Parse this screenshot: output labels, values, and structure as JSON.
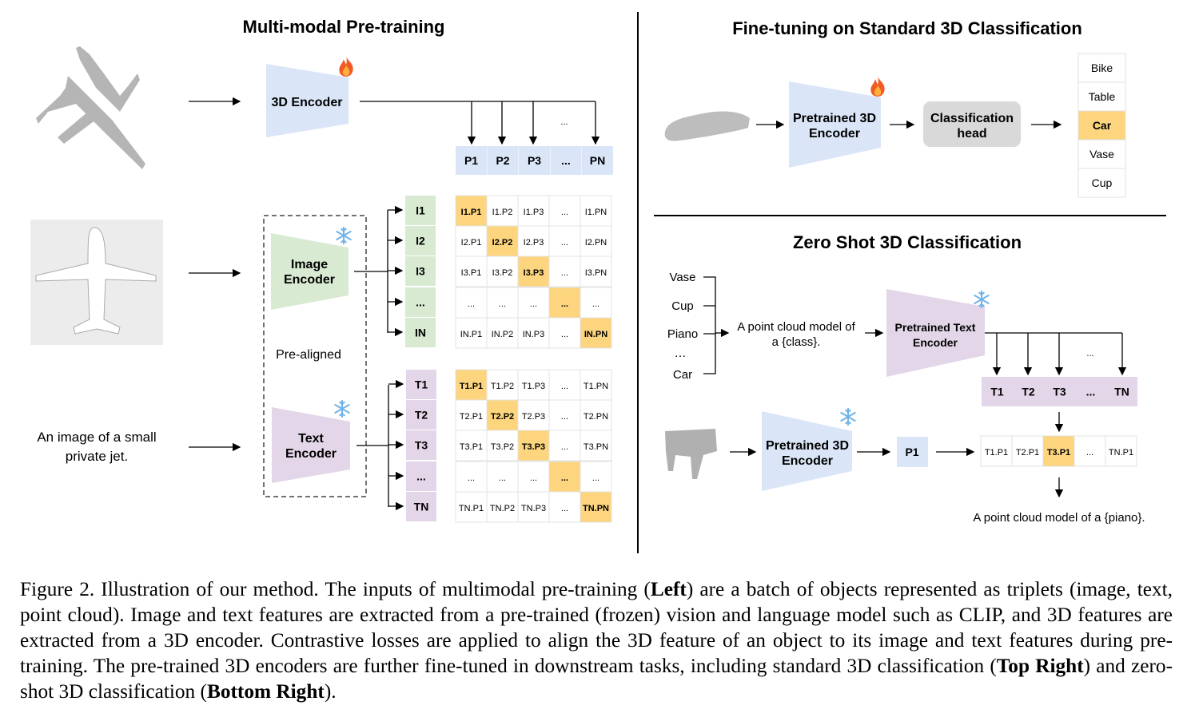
{
  "left": {
    "title": "Multi-modal Pre-training",
    "encoder_3d": "3D Encoder",
    "image_encoder": [
      "Image",
      "Encoder"
    ],
    "text_encoder": [
      "Text",
      "Encoder"
    ],
    "pre_aligned": "Pre-aligned",
    "text_input": [
      "An image of a small",
      "private jet."
    ],
    "ellipsis": "...",
    "p_features": [
      "P1",
      "P2",
      "P3",
      "...",
      "PN"
    ],
    "i_features": [
      "I1",
      "I2",
      "I3",
      "...",
      "IN"
    ],
    "t_features": [
      "T1",
      "T2",
      "T3",
      "...",
      "TN"
    ],
    "image_matrix": [
      [
        "I1.P1",
        "I1.P2",
        "I1.P3",
        "...",
        "I1.PN"
      ],
      [
        "I2.P1",
        "I2.P2",
        "I2.P3",
        "...",
        "I2.PN"
      ],
      [
        "I3.P1",
        "I3.P2",
        "I3.P3",
        "...",
        "I3.PN"
      ],
      [
        "...",
        "...",
        "...",
        "...",
        "..."
      ],
      [
        "IN.P1",
        "IN.P2",
        "IN.P3",
        "...",
        "IN.PN"
      ]
    ],
    "text_matrix": [
      [
        "T1.P1",
        "T1.P2",
        "T1.P3",
        "...",
        "T1.PN"
      ],
      [
        "T2.P1",
        "T2.P2",
        "T2.P3",
        "...",
        "T2.PN"
      ],
      [
        "T3.P1",
        "T3.P2",
        "T3.P3",
        "...",
        "T3.PN"
      ],
      [
        "...",
        "...",
        "...",
        "...",
        "..."
      ],
      [
        "TN.P1",
        "TN.P2",
        "TN.P3",
        "...",
        "TN.PN"
      ]
    ]
  },
  "top_right": {
    "title": "Fine-tuning on Standard 3D Classification",
    "encoder": [
      "Pretrained 3D",
      "Encoder"
    ],
    "head": [
      "Classification",
      "head"
    ],
    "classes": [
      "Bike",
      "Table",
      "Car",
      "Vase",
      "Cup"
    ],
    "selected_class": "Car"
  },
  "bottom_right": {
    "title": "Zero Shot 3D Classification",
    "classes": [
      "Vase",
      "Cup",
      "Piano",
      "…",
      "Car"
    ],
    "prompt": [
      "A point cloud model of",
      "a {class}."
    ],
    "text_encoder": [
      "Pretrained Text",
      "Encoder"
    ],
    "encoder_3d": [
      "Pretrained 3D",
      "Encoder"
    ],
    "t_features": [
      "T1",
      "T2",
      "T3",
      "...",
      "TN"
    ],
    "p1": "P1",
    "ellipsis": "...",
    "scores": [
      "T1.P1",
      "T2.P1",
      "T3.P1",
      "...",
      "TN.P1"
    ],
    "result": "A point cloud model of a {piano}."
  },
  "icons": {
    "trainable": "fire-icon",
    "frozen": "snowflake-icon"
  },
  "colors": {
    "encoder_3d": "#dae6f7",
    "image": "#d9ead3",
    "text": "#e3d6e8",
    "highlight": "#fcd57e",
    "head": "#d9d9d9"
  },
  "caption": [
    {
      "text": "Figure 2. Illustration of our method. The inputs of multimodal pre-training (",
      "bold": false
    },
    {
      "text": "Left",
      "bold": true
    },
    {
      "text": ") are a batch of objects represented as triplets (image, text, point cloud). Image and text features are extracted from a pre-trained (frozen) vision and language model such as CLIP, and 3D features are extracted from a 3D encoder. Contrastive losses are applied to align the 3D feature of an object to its image and text features during pre-training. The pre-trained 3D encoders are further fine-tuned in downstream tasks, including standard 3D classification (",
      "bold": false
    },
    {
      "text": "Top Right",
      "bold": true
    },
    {
      "text": ") and zero-shot 3D classification (",
      "bold": false
    },
    {
      "text": "Bottom Right",
      "bold": true
    },
    {
      "text": ").",
      "bold": false
    }
  ]
}
